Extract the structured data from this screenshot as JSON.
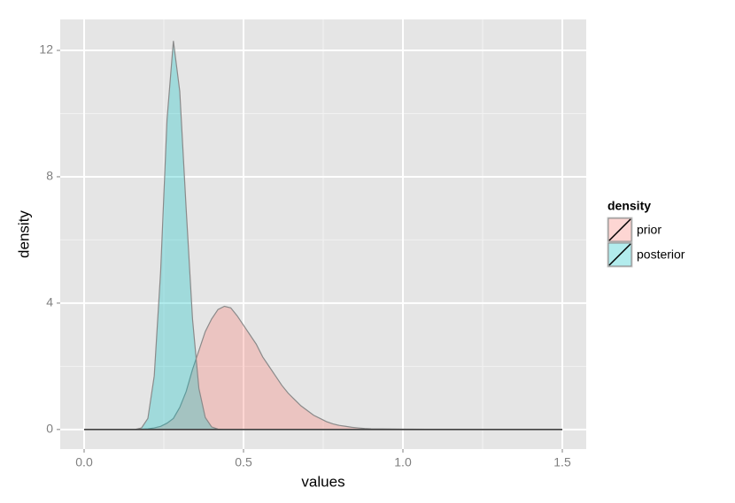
{
  "chart_data": {
    "type": "density",
    "xlabel": "values",
    "ylabel": "density",
    "legend_title": "density",
    "legend": "right",
    "grid": true,
    "x": [
      0,
      0.1,
      0.16,
      0.18,
      0.2,
      0.22,
      0.24,
      0.26,
      0.28,
      0.3,
      0.32,
      0.34,
      0.36,
      0.38,
      0.4,
      0.42,
      0.44,
      0.46,
      0.48,
      0.5,
      0.52,
      0.54,
      0.56,
      0.58,
      0.6,
      0.62,
      0.64,
      0.66,
      0.68,
      0.7,
      0.72,
      0.74,
      0.76,
      0.78,
      0.8,
      0.82,
      0.84,
      0.86,
      0.88,
      0.9,
      1.0,
      1.2,
      1.5
    ],
    "series": [
      {
        "name": "prior",
        "color": "#F8766D",
        "values": [
          0,
          0,
          0,
          0.01,
          0.02,
          0.05,
          0.1,
          0.2,
          0.35,
          0.7,
          1.2,
          1.9,
          2.5,
          3.1,
          3.5,
          3.8,
          3.9,
          3.85,
          3.6,
          3.3,
          3.0,
          2.7,
          2.3,
          2.0,
          1.7,
          1.4,
          1.15,
          0.95,
          0.75,
          0.6,
          0.45,
          0.35,
          0.25,
          0.18,
          0.13,
          0.1,
          0.07,
          0.05,
          0.03,
          0.02,
          0.01,
          0,
          0
        ]
      },
      {
        "name": "posterior",
        "color": "#00BFC4",
        "values": [
          0,
          0,
          0,
          0.05,
          0.35,
          1.7,
          5.0,
          9.8,
          12.3,
          10.7,
          7.0,
          3.5,
          1.3,
          0.38,
          0.08,
          0.01,
          0,
          0,
          0,
          0,
          0,
          0,
          0,
          0,
          0,
          0,
          0,
          0,
          0,
          0,
          0,
          0,
          0,
          0,
          0,
          0,
          0,
          0,
          0,
          0,
          0,
          0,
          0
        ]
      }
    ],
    "xlim": [
      -0.075,
      1.575
    ],
    "xticks": [
      {
        "value": 0,
        "label": "0.0"
      },
      0.5,
      {
        "value": 1,
        "label": "1.0"
      },
      1.5
    ],
    "ylim": [
      -0.62,
      12.98
    ],
    "yticks": [
      0,
      4,
      8,
      12
    ]
  }
}
